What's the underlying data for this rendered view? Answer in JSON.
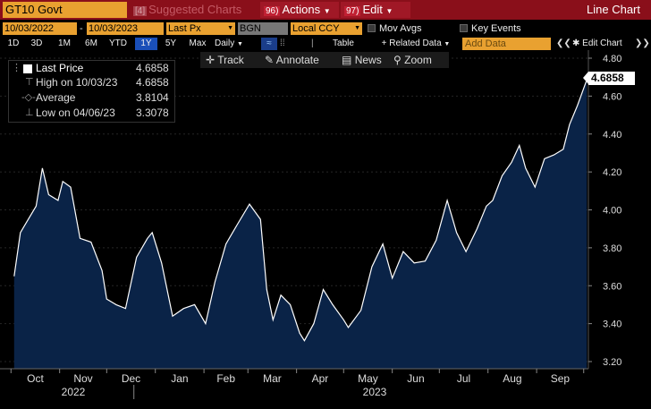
{
  "titlebar": {
    "ticker": "GT10 Govt",
    "suggested_num": "[4]",
    "suggested_label": "Suggested Charts",
    "actions_num": "96)",
    "actions_label": "Actions",
    "edit_num": "97)",
    "edit_label": "Edit",
    "chart_title": "Line Chart"
  },
  "controls": {
    "start_date": "10/03/2022",
    "dash": "-",
    "end_date": "10/03/2023",
    "field": "Last Px",
    "source": "BGN",
    "currency": "Local CCY",
    "mov_avgs": "Mov Avgs",
    "key_events": "Key Events",
    "ranges": [
      "1D",
      "3D",
      "1M",
      "6M",
      "YTD",
      "1Y",
      "5Y",
      "Max"
    ],
    "selected_range": "1Y",
    "frequency": "Daily",
    "table": "Table",
    "related_data": "+ Related Data",
    "add_data_placeholder": "Add Data",
    "edit_chart": "Edit Chart"
  },
  "chart_toolbar": {
    "track": "Track",
    "annotate": "Annotate",
    "news": "News",
    "zoom": "Zoom"
  },
  "legend": {
    "last_price_label": "Last Price",
    "last_price_value": "4.6858",
    "high_label": "High on 10/03/23",
    "high_value": "4.6858",
    "average_label": "Average",
    "average_value": "3.8104",
    "low_label": "Low on 04/06/23",
    "low_value": "3.3078"
  },
  "price_tag": "4.6858",
  "colors": {
    "title_bar": "#8a0f1a",
    "amber": "#e9a130",
    "area_fill": "#0a2347",
    "line": "#ffffff",
    "selected": "#1a4fb8"
  },
  "chart_data": {
    "type": "area",
    "x_ticks": [
      "Oct",
      "Nov",
      "Dec",
      "Jan",
      "Feb",
      "Mar",
      "Apr",
      "May",
      "Jun",
      "Jul",
      "Aug",
      "Sep"
    ],
    "year_labels": [
      "2022",
      "2023"
    ],
    "y_ticks": [
      "4.80",
      "4.60",
      "4.40",
      "4.20",
      "4.00",
      "3.80",
      "3.60",
      "3.40",
      "3.20"
    ],
    "ylim": [
      3.2,
      4.8
    ],
    "series": [
      {
        "x": [
          "2022-10-03",
          "2022-10-07",
          "2022-10-12",
          "2022-10-17",
          "2022-10-21",
          "2022-10-25",
          "2022-10-31",
          "2022-11-03",
          "2022-11-08",
          "2022-11-14",
          "2022-11-21",
          "2022-11-28",
          "2022-12-01",
          "2022-12-07",
          "2022-12-13",
          "2022-12-20",
          "2022-12-27",
          "2022-12-30",
          "2023-01-05",
          "2023-01-12",
          "2023-01-19",
          "2023-01-26",
          "2023-02-02",
          "2023-02-08",
          "2023-02-15",
          "2023-02-22",
          "2023-03-02",
          "2023-03-09",
          "2023-03-13",
          "2023-03-17",
          "2023-03-22",
          "2023-03-28",
          "2023-04-03",
          "2023-04-06",
          "2023-04-12",
          "2023-04-18",
          "2023-04-24",
          "2023-05-01",
          "2023-05-04",
          "2023-05-12",
          "2023-05-19",
          "2023-05-26",
          "2023-06-01",
          "2023-06-08",
          "2023-06-15",
          "2023-06-22",
          "2023-06-29",
          "2023-07-06",
          "2023-07-12",
          "2023-07-18",
          "2023-07-25",
          "2023-07-31",
          "2023-08-04",
          "2023-08-10",
          "2023-08-16",
          "2023-08-21",
          "2023-08-25",
          "2023-08-31",
          "2023-09-06",
          "2023-09-12",
          "2023-09-18",
          "2023-09-22",
          "2023-09-27",
          "2023-10-03"
        ],
        "y": [
          3.65,
          3.88,
          3.95,
          4.02,
          4.22,
          4.08,
          4.05,
          4.15,
          4.12,
          3.85,
          3.83,
          3.68,
          3.53,
          3.5,
          3.48,
          3.75,
          3.85,
          3.88,
          3.72,
          3.44,
          3.48,
          3.5,
          3.4,
          3.62,
          3.82,
          3.92,
          4.03,
          3.95,
          3.58,
          3.42,
          3.55,
          3.5,
          3.35,
          3.31,
          3.4,
          3.58,
          3.5,
          3.42,
          3.38,
          3.47,
          3.7,
          3.82,
          3.64,
          3.78,
          3.72,
          3.73,
          3.84,
          4.05,
          3.88,
          3.78,
          3.9,
          4.02,
          4.05,
          4.18,
          4.25,
          4.34,
          4.22,
          4.12,
          4.27,
          4.29,
          4.32,
          4.45,
          4.55,
          4.6858
        ]
      }
    ]
  }
}
